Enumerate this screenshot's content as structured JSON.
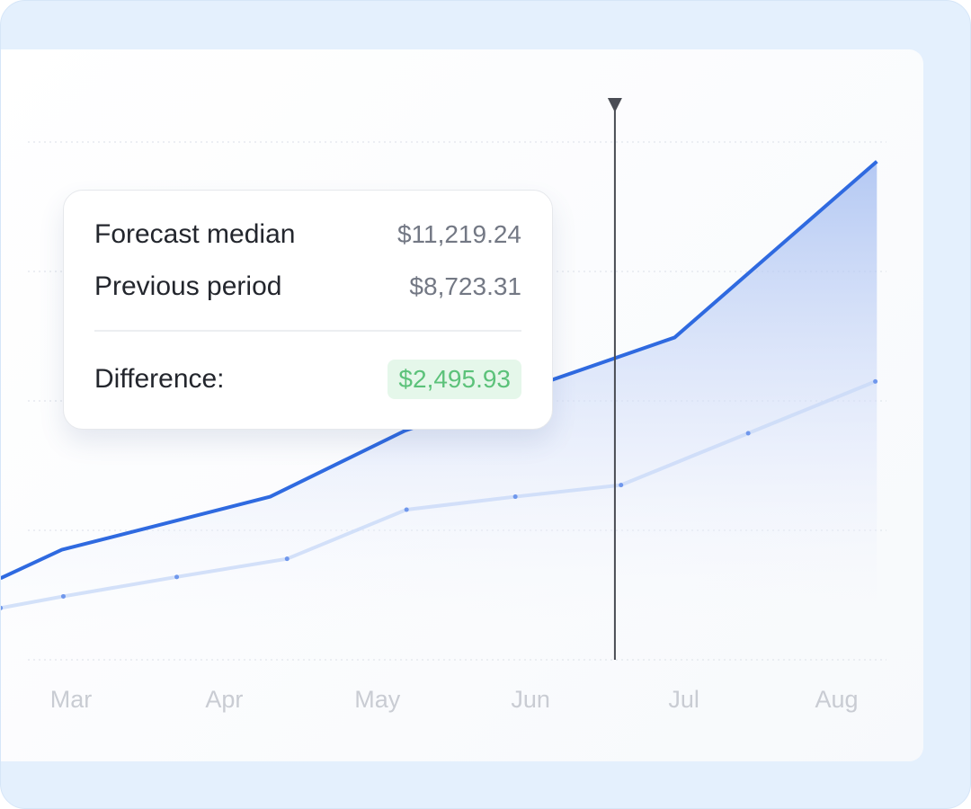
{
  "tooltip": {
    "rows": [
      {
        "label": "Forecast median",
        "value": "$11,219.24"
      },
      {
        "label": "Previous period",
        "value": "$8,723.31"
      }
    ],
    "difference_label": "Difference:",
    "difference_value": "$2,495.93"
  },
  "chart_data": {
    "type": "area",
    "title": "",
    "xlabel": "",
    "ylabel": "",
    "categories": [
      "Mar",
      "Apr",
      "May",
      "Jun",
      "Jul",
      "Aug"
    ],
    "xlim": [
      -0.46,
      5.3
    ],
    "ylim": [
      0,
      4
    ],
    "grid": true,
    "crosshair_x": 3.55,
    "series": [
      {
        "color": "#2f6ae0",
        "points": [
          [
            -0.46,
            0.63
          ],
          [
            -0.06,
            0.85
          ],
          [
            1.3,
            1.26
          ],
          [
            2.18,
            1.77
          ],
          [
            3.94,
            2.49
          ],
          [
            5.26,
            3.85
          ]
        ]
      },
      {
        "color": "#c9d9f7",
        "points": [
          [
            -0.46,
            0.4
          ],
          [
            -0.05,
            0.49
          ],
          [
            0.69,
            0.64
          ],
          [
            1.41,
            0.78
          ],
          [
            2.19,
            1.16
          ],
          [
            2.9,
            1.26
          ],
          [
            3.59,
            1.35
          ],
          [
            4.42,
            1.75
          ],
          [
            5.25,
            2.15
          ]
        ]
      }
    ]
  },
  "colors": {
    "accent": "#2f6ae0",
    "positive": "#5cc27a",
    "background": "#e4f0fd"
  }
}
